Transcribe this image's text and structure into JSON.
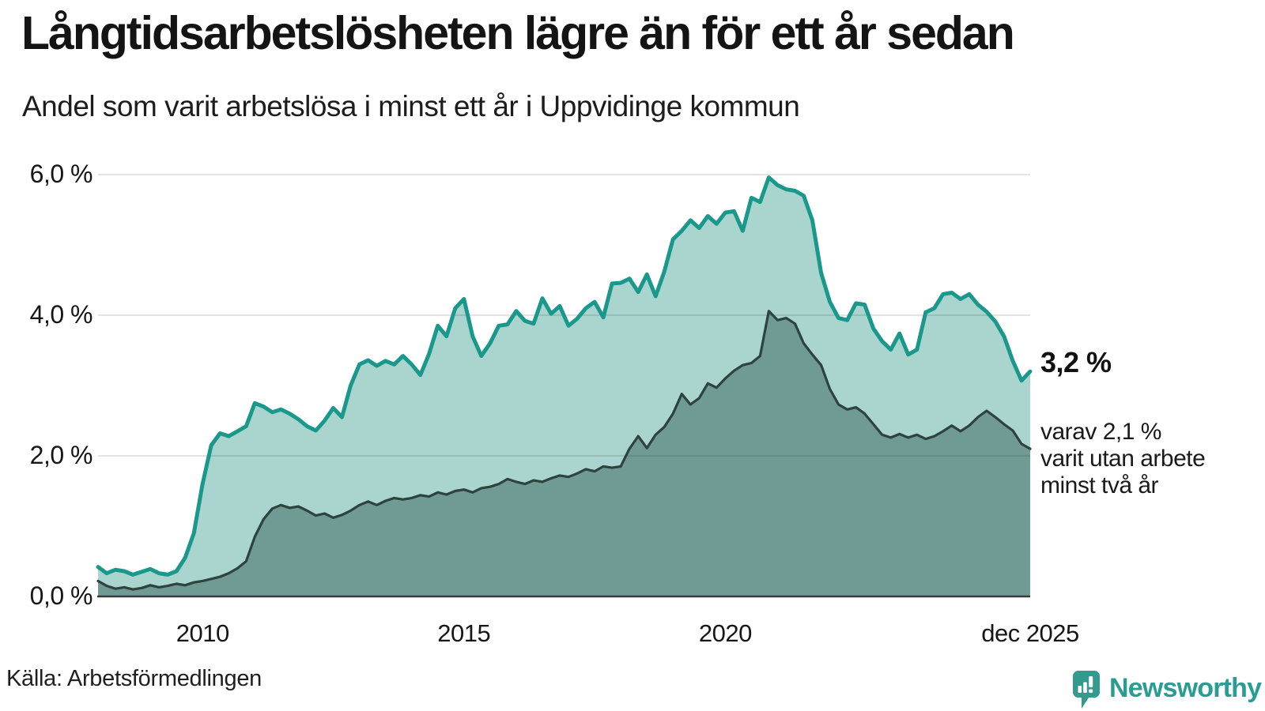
{
  "chart_data": {
    "type": "area",
    "title": "Långtidsarbetslösheten lägre än för ett år sedan",
    "subtitle": "Andel som varit arbetslösa i minst ett år i Uppvidinge kommun",
    "x_start_year": 2008,
    "x_step_years": 0.166667,
    "x_span_years": 17.8333,
    "xlabel": "",
    "ylabel": "",
    "ylim": [
      0,
      6.2
    ],
    "grid": "horizontal",
    "grid_color": "rgba(40,40,40,0.13)",
    "axis_color": "#3a3a3a",
    "y_ticks": [
      {
        "label": "0,0 %",
        "v": 0
      },
      {
        "label": "2,0 %",
        "v": 2
      },
      {
        "label": "4,0 %",
        "v": 4
      },
      {
        "label": "6,0 %",
        "v": 6
      }
    ],
    "x_ticks": [
      {
        "label": "2010",
        "t": 2
      },
      {
        "label": "2015",
        "t": 7
      },
      {
        "label": "2020",
        "t": 12
      },
      {
        "label": "dec 2025",
        "t": 17.8333
      }
    ],
    "series": [
      {
        "name": "Arbetslösa minst ett år",
        "line_color": "#19988b",
        "fill_color": "#a9d5ce",
        "values": [
          0.42,
          0.33,
          0.38,
          0.36,
          0.31,
          0.35,
          0.39,
          0.33,
          0.31,
          0.36,
          0.55,
          0.9,
          1.6,
          2.15,
          2.32,
          2.28,
          2.35,
          2.42,
          2.75,
          2.7,
          2.62,
          2.66,
          2.6,
          2.52,
          2.42,
          2.36,
          2.5,
          2.68,
          2.55,
          3.0,
          3.3,
          3.36,
          3.28,
          3.35,
          3.3,
          3.42,
          3.3,
          3.15,
          3.45,
          3.85,
          3.7,
          4.1,
          4.23,
          3.7,
          3.42,
          3.6,
          3.85,
          3.87,
          4.06,
          3.92,
          3.88,
          4.24,
          4.02,
          4.13,
          3.85,
          3.95,
          4.1,
          4.19,
          3.97,
          4.45,
          4.46,
          4.52,
          4.33,
          4.58,
          4.27,
          4.62,
          5.08,
          5.2,
          5.35,
          5.24,
          5.41,
          5.3,
          5.46,
          5.48,
          5.2,
          5.67,
          5.61,
          5.96,
          5.85,
          5.79,
          5.77,
          5.7,
          5.35,
          4.6,
          4.19,
          3.96,
          3.93,
          4.17,
          4.15,
          3.81,
          3.63,
          3.51,
          3.74,
          3.44,
          3.51,
          4.04,
          4.1,
          4.3,
          4.32,
          4.23,
          4.3,
          4.15,
          4.05,
          3.91,
          3.7,
          3.35,
          3.07,
          3.2
        ]
      },
      {
        "name": "Varav utan arbete minst två år",
        "line_color": "#2e423e",
        "fill_color": "#6f9b94",
        "values": [
          0.22,
          0.15,
          0.11,
          0.13,
          0.1,
          0.12,
          0.16,
          0.13,
          0.15,
          0.18,
          0.16,
          0.2,
          0.22,
          0.25,
          0.28,
          0.33,
          0.4,
          0.5,
          0.85,
          1.1,
          1.25,
          1.3,
          1.26,
          1.28,
          1.22,
          1.15,
          1.18,
          1.12,
          1.16,
          1.22,
          1.3,
          1.35,
          1.3,
          1.36,
          1.4,
          1.38,
          1.4,
          1.44,
          1.42,
          1.48,
          1.45,
          1.5,
          1.52,
          1.48,
          1.54,
          1.56,
          1.6,
          1.67,
          1.63,
          1.6,
          1.65,
          1.63,
          1.68,
          1.72,
          1.7,
          1.75,
          1.81,
          1.78,
          1.85,
          1.83,
          1.85,
          2.1,
          2.28,
          2.11,
          2.3,
          2.41,
          2.6,
          2.88,
          2.73,
          2.82,
          3.03,
          2.97,
          3.1,
          3.21,
          3.29,
          3.32,
          3.42,
          4.06,
          3.93,
          3.96,
          3.88,
          3.6,
          3.44,
          3.29,
          2.95,
          2.73,
          2.66,
          2.69,
          2.6,
          2.45,
          2.3,
          2.26,
          2.31,
          2.26,
          2.3,
          2.24,
          2.28,
          2.35,
          2.43,
          2.35,
          2.43,
          2.55,
          2.64,
          2.55,
          2.45,
          2.36,
          2.17,
          2.1
        ]
      }
    ],
    "end_labels": {
      "total": "3,2 %",
      "subset_lines": [
        "varav 2,1 %",
        "varit utan arbete",
        "minst två år"
      ]
    }
  },
  "source": {
    "label": "Källa: Arbetsförmedlingen"
  },
  "branding": {
    "name": "Newsworthy",
    "color": "#2a9d92",
    "icon_color": "#339a8e"
  }
}
